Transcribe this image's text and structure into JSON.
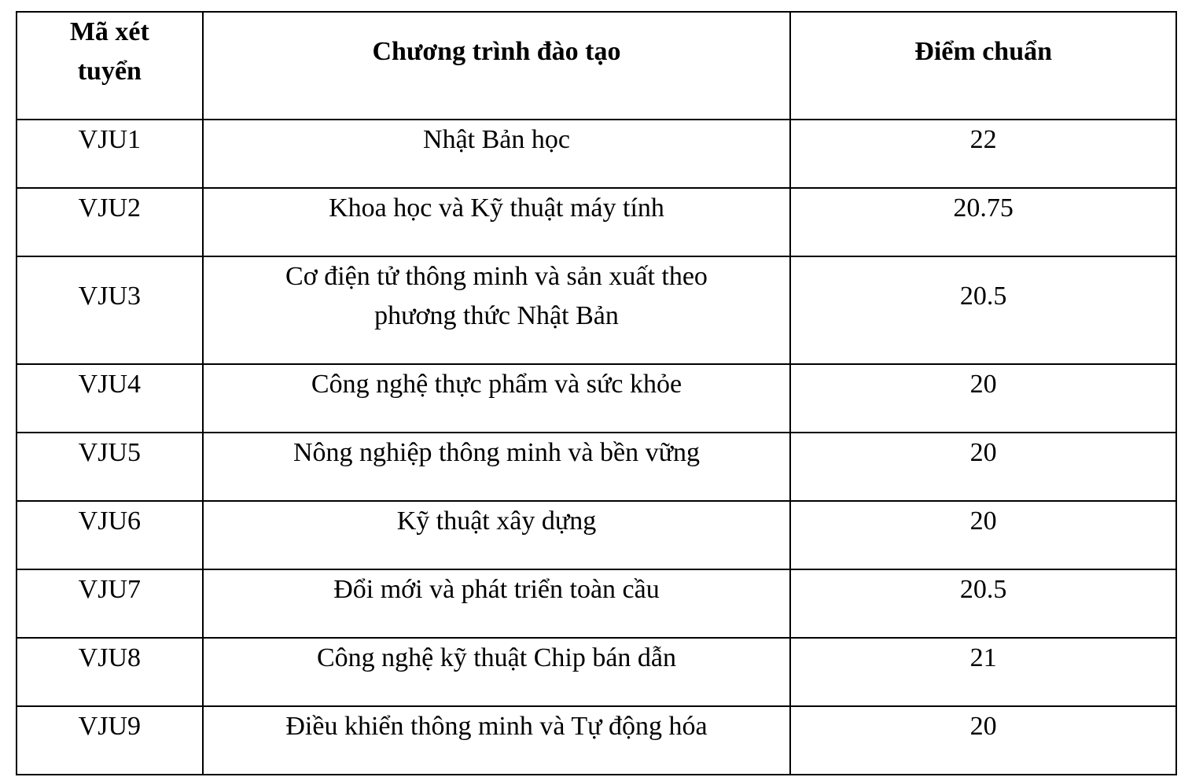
{
  "table": {
    "headers": [
      "Mã xét tuyển",
      "Chương trình đào tạo",
      "Điểm chuẩn"
    ],
    "rows": [
      {
        "code": "VJU1",
        "program": "Nhật Bản học",
        "score": "22"
      },
      {
        "code": "VJU2",
        "program": "Khoa học và Kỹ thuật máy tính",
        "score": "20.75"
      },
      {
        "code": "VJU3",
        "program": "Cơ điện tử thông minh và sản xuất theo phương thức Nhật Bản",
        "score": "20.5"
      },
      {
        "code": "VJU4",
        "program": "Công nghệ thực phẩm và sức khỏe",
        "score": "20"
      },
      {
        "code": "VJU5",
        "program": "Nông nghiệp thông minh và bền vững",
        "score": "20"
      },
      {
        "code": "VJU6",
        "program": "Kỹ thuật xây dựng",
        "score": "20"
      },
      {
        "code": "VJU7",
        "program": "Đổi mới và phát triển toàn cầu",
        "score": "20.5"
      },
      {
        "code": "VJU8",
        "program": "Công nghệ kỹ thuật Chip bán dẫn",
        "score": "21"
      },
      {
        "code": "VJU9",
        "program": "Điều khiển thông minh và Tự động hóa",
        "score": "20"
      }
    ]
  }
}
